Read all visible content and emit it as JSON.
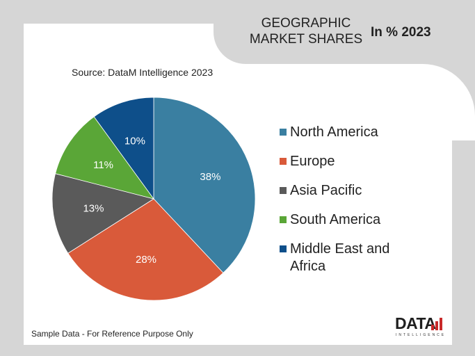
{
  "header": {
    "title": "GEOGRAPHIC MARKET SHARES",
    "year_label": "In % 2023"
  },
  "source": "Source: DataM Intelligence 2023",
  "footnote": "Sample Data - For Reference Purpose Only",
  "logo": {
    "word": "DATA",
    "subtext": "INTELLIGENCE"
  },
  "chart_data": {
    "type": "pie",
    "categories": [
      "North America",
      "Europe",
      "Asia Pacific",
      "South America",
      "Middle East and Africa"
    ],
    "values": [
      38,
      28,
      13,
      11,
      10
    ],
    "value_labels": [
      "38%",
      "28%",
      "13%",
      "11%",
      "10%"
    ],
    "colors": [
      "#3a7fa1",
      "#d95a3a",
      "#5a5a5a",
      "#5aa637",
      "#0e4f8a"
    ],
    "legend_position": "right",
    "start_angle": "top, clockwise"
  }
}
